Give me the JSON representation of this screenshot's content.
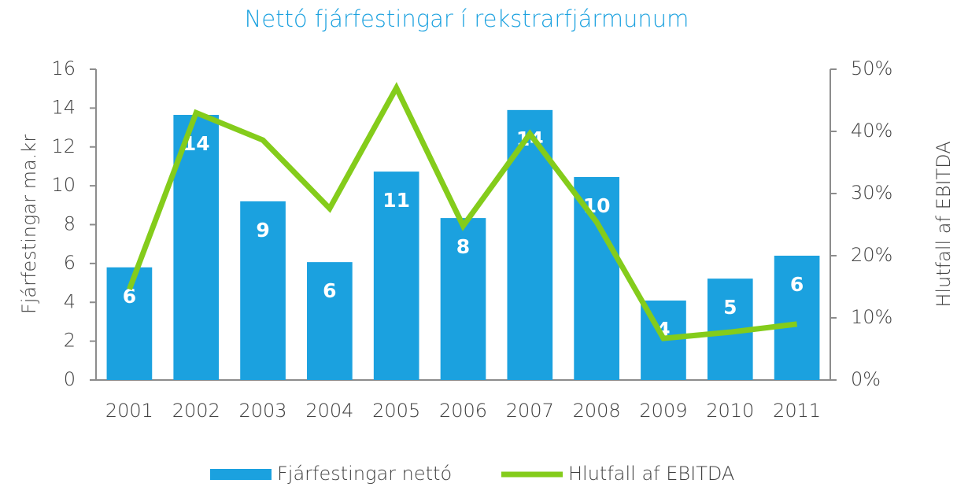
{
  "chart_data": {
    "type": "bar_line",
    "title": "Nettó fjárfestingar í rekstrarfjármunum",
    "y_label": "Fjárfestingar ma.kr",
    "y2_label": "Hlutfall af EBITDA",
    "categories": [
      "2001",
      "2002",
      "2003",
      "2004",
      "2005",
      "2006",
      "2007",
      "2008",
      "2009",
      "2010",
      "2011"
    ],
    "series": [
      {
        "name": "Fjárfestingar nettó",
        "color": "#1ba1df",
        "type": "bar",
        "values": [
          5.8,
          13.65,
          9.2,
          6.07,
          10.73,
          8.34,
          13.9,
          10.45,
          4.09,
          5.22,
          6.4
        ],
        "value_labels": [
          "6",
          "14",
          "9",
          "6",
          "11",
          "8",
          "14",
          "10",
          "4",
          "5",
          "6"
        ]
      },
      {
        "name": "Hlutfall af EBITDA",
        "color": "#84cc1b",
        "type": "line",
        "axis": "y2",
        "values": [
          14.6,
          43,
          38.6,
          27.6,
          47,
          24.8,
          39.6,
          25.4,
          6.7,
          7.7,
          9.0
        ]
      }
    ],
    "ylim": [
      0,
      16
    ],
    "yticks": [
      0,
      2,
      4,
      6,
      8,
      10,
      12,
      14,
      16
    ],
    "y2lim": [
      0,
      50
    ],
    "y2ticks": [
      {
        "value": 0,
        "label": "0%"
      },
      {
        "value": 10,
        "label": "10%"
      },
      {
        "value": 20,
        "label": "20%"
      },
      {
        "value": 30,
        "label": "30%"
      },
      {
        "value": 40,
        "label": "40%"
      },
      {
        "value": 50,
        "label": "50%"
      }
    ],
    "grid": false,
    "legend": "bottom"
  }
}
